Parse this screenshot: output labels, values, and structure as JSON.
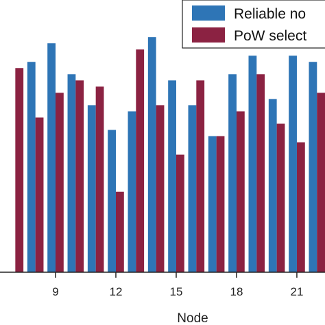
{
  "chart_data": {
    "type": "bar",
    "title": "",
    "xlabel": "Node",
    "ylabel": "",
    "x_tick_labels": [
      "9",
      "12",
      "15",
      "18",
      "21"
    ],
    "x_tick_values": [
      9,
      12,
      15,
      18,
      21
    ],
    "categories": [
      7,
      8,
      9,
      10,
      11,
      12,
      13,
      14,
      15,
      16,
      17,
      18,
      19,
      20,
      21,
      22
    ],
    "series": [
      {
        "name": "Reliable no",
        "color": "#2e75b6",
        "values": [
          null,
          0.68,
          0.74,
          0.64,
          0.54,
          0.46,
          0.52,
          0.76,
          0.62,
          0.54,
          0.44,
          0.64,
          0.7,
          0.56,
          0.7,
          0.68
        ]
      },
      {
        "name": "PoW select",
        "color": "#8b2242",
        "values": [
          0.66,
          0.5,
          0.58,
          0.62,
          0.6,
          0.26,
          0.72,
          0.54,
          0.38,
          0.62,
          0.44,
          0.52,
          0.64,
          0.48,
          0.42,
          0.58
        ]
      }
    ],
    "ylim": [
      0,
      0.88
    ],
    "grid": false,
    "legend_position": "top-right"
  }
}
